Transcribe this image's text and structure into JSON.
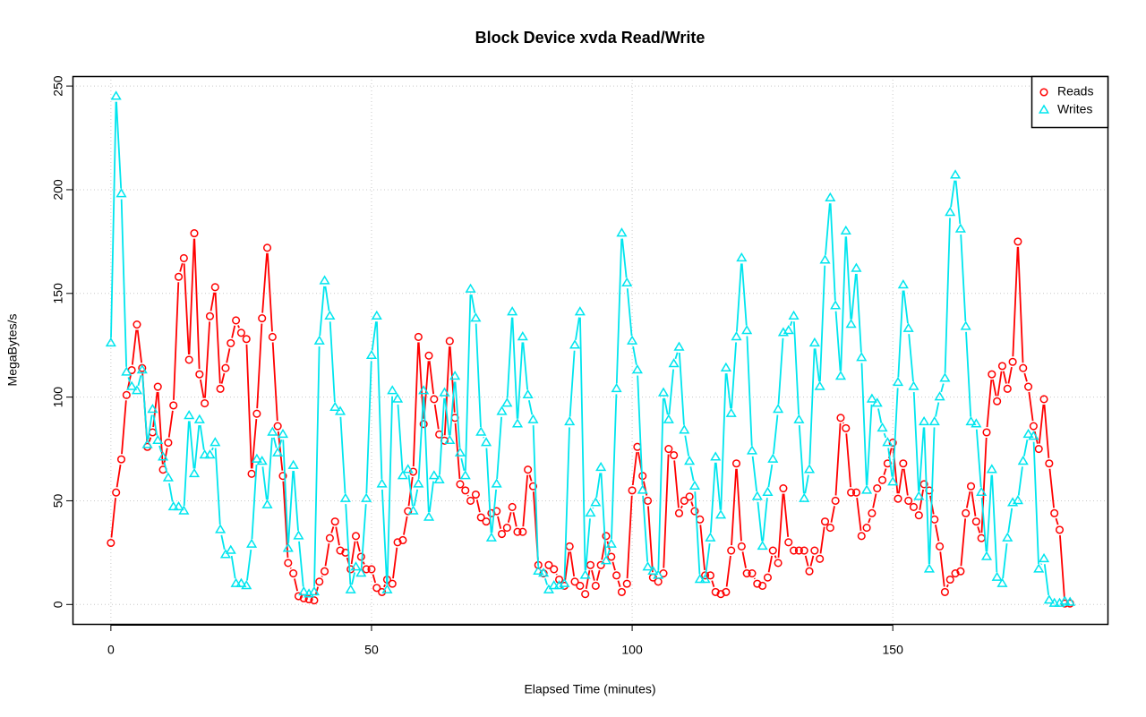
{
  "chart_data": {
    "type": "line",
    "title": "Block Device xvda Read/Write",
    "xlabel": "Elapsed Time (minutes)",
    "ylabel": "MegaBytes/s",
    "legend": "topright",
    "grid": true,
    "xlim": [
      -7.36,
      191.36
    ],
    "ylim": [
      -9.8,
      254.8
    ],
    "xticks": [
      0,
      50,
      100,
      150
    ],
    "yticks": [
      0,
      50,
      100,
      150,
      200,
      250
    ],
    "x": [
      0,
      1,
      2,
      3,
      4,
      5,
      6,
      7,
      8,
      9,
      10,
      11,
      12,
      13,
      14,
      15,
      16,
      17,
      18,
      19,
      20,
      21,
      22,
      23,
      24,
      25,
      26,
      27,
      28,
      29,
      30,
      31,
      32,
      33,
      34,
      35,
      36,
      37,
      38,
      39,
      40,
      41,
      42,
      43,
      44,
      45,
      46,
      47,
      48,
      49,
      50,
      51,
      52,
      53,
      54,
      55,
      56,
      57,
      58,
      59,
      60,
      61,
      62,
      63,
      64,
      65,
      66,
      67,
      68,
      69,
      70,
      71,
      72,
      73,
      74,
      75,
      76,
      77,
      78,
      79,
      80,
      81,
      82,
      83,
      84,
      85,
      86,
      87,
      88,
      89,
      90,
      91,
      92,
      93,
      94,
      95,
      96,
      97,
      98,
      99,
      100,
      101,
      102,
      103,
      104,
      105,
      106,
      107,
      108,
      109,
      110,
      111,
      112,
      113,
      114,
      115,
      116,
      117,
      118,
      119,
      120,
      121,
      122,
      123,
      124,
      125,
      126,
      127,
      128,
      129,
      130,
      131,
      132,
      133,
      134,
      135,
      136,
      137,
      138,
      139,
      140,
      141,
      142,
      143,
      144,
      145,
      146,
      147,
      148,
      149,
      150,
      151,
      152,
      153,
      154,
      155,
      156,
      157,
      158,
      159,
      160,
      161,
      162,
      163,
      164,
      165,
      166,
      167,
      168,
      169,
      170,
      171,
      172,
      173,
      174,
      175,
      176,
      177,
      178,
      179,
      180,
      181,
      182,
      183,
      184
    ],
    "series": [
      {
        "name": "Reads",
        "color": "#ff0000",
        "marker": "circle",
        "values": [
          29.7,
          54,
          70,
          101,
          113,
          135,
          114,
          76,
          83,
          105,
          65,
          78,
          96,
          158,
          167,
          118,
          179,
          111,
          97,
          139,
          153,
          104,
          114,
          126,
          137,
          131,
          128,
          63,
          92,
          138,
          172,
          129,
          86,
          62,
          20,
          15,
          4,
          3,
          2.5,
          2,
          11,
          16,
          32,
          40,
          26,
          25,
          17,
          33,
          23,
          17,
          17,
          8,
          6,
          12,
          10,
          30,
          31,
          45,
          64,
          129,
          87,
          120,
          99,
          82,
          79,
          127,
          90,
          58,
          55,
          50,
          53,
          42,
          40,
          44,
          45,
          34,
          37,
          47,
          35,
          35,
          65,
          57,
          19,
          15,
          19,
          17,
          12,
          9,
          28,
          11,
          9,
          5,
          19,
          9,
          19,
          33,
          23,
          14,
          6,
          10,
          55,
          76,
          62,
          50,
          13,
          11,
          15,
          75,
          72,
          44,
          50,
          52,
          45,
          41,
          14,
          14,
          6,
          5,
          6,
          26,
          68,
          28,
          15,
          15,
          10,
          9,
          13,
          26,
          20,
          56,
          30,
          26,
          26,
          26,
          16,
          26,
          22,
          40,
          37,
          50,
          90,
          85,
          54,
          54,
          33,
          37,
          44,
          56,
          60,
          68,
          78,
          51,
          68,
          50,
          47,
          43,
          58,
          55,
          41,
          28,
          6,
          12,
          15,
          16,
          44,
          57,
          40,
          32,
          83,
          111,
          98,
          115,
          104,
          117,
          175,
          114,
          105,
          86,
          75,
          99,
          68,
          44,
          36,
          0.5,
          0.5
        ]
      },
      {
        "name": "Writes",
        "color": "#00e5ee",
        "marker": "triangle",
        "values": [
          126,
          245,
          198,
          112,
          105,
          103,
          113,
          77,
          94,
          79,
          71,
          61,
          47,
          47,
          45,
          91,
          63,
          89,
          72,
          72,
          78,
          36,
          24,
          26,
          10,
          10,
          9,
          29,
          70,
          69,
          48,
          83,
          73,
          82,
          27,
          67,
          33,
          6,
          5,
          6,
          127,
          156,
          139,
          95,
          93,
          51,
          7,
          18,
          15,
          51,
          120,
          139,
          58,
          7,
          103,
          99,
          62,
          65,
          45,
          58,
          103,
          42,
          62,
          60,
          102,
          79,
          110,
          73,
          62,
          152,
          138,
          83,
          78,
          32,
          58,
          93,
          97,
          141,
          87,
          129,
          101,
          89,
          16,
          15,
          7,
          9,
          9,
          10,
          88,
          125,
          141,
          14,
          44,
          49,
          66,
          21,
          29,
          104,
          179,
          155,
          127,
          113,
          55,
          18,
          16,
          14,
          102,
          89,
          116,
          124,
          84,
          69,
          57,
          12,
          12,
          32,
          71,
          43,
          114,
          92,
          129,
          167,
          132,
          74,
          52,
          28,
          54,
          70,
          94,
          131,
          132,
          139,
          89,
          51,
          65,
          126,
          105,
          166,
          196,
          144,
          110,
          180,
          135,
          162,
          119,
          55,
          99,
          97,
          85,
          78,
          59,
          107,
          154,
          133,
          105,
          52,
          88,
          17,
          88,
          100,
          109,
          189,
          207,
          181,
          134,
          88,
          87,
          54,
          23,
          65,
          13,
          10,
          32,
          49,
          50,
          69,
          82,
          81,
          17,
          22,
          2,
          0.5,
          0.5,
          1.5,
          1
        ]
      }
    ]
  }
}
